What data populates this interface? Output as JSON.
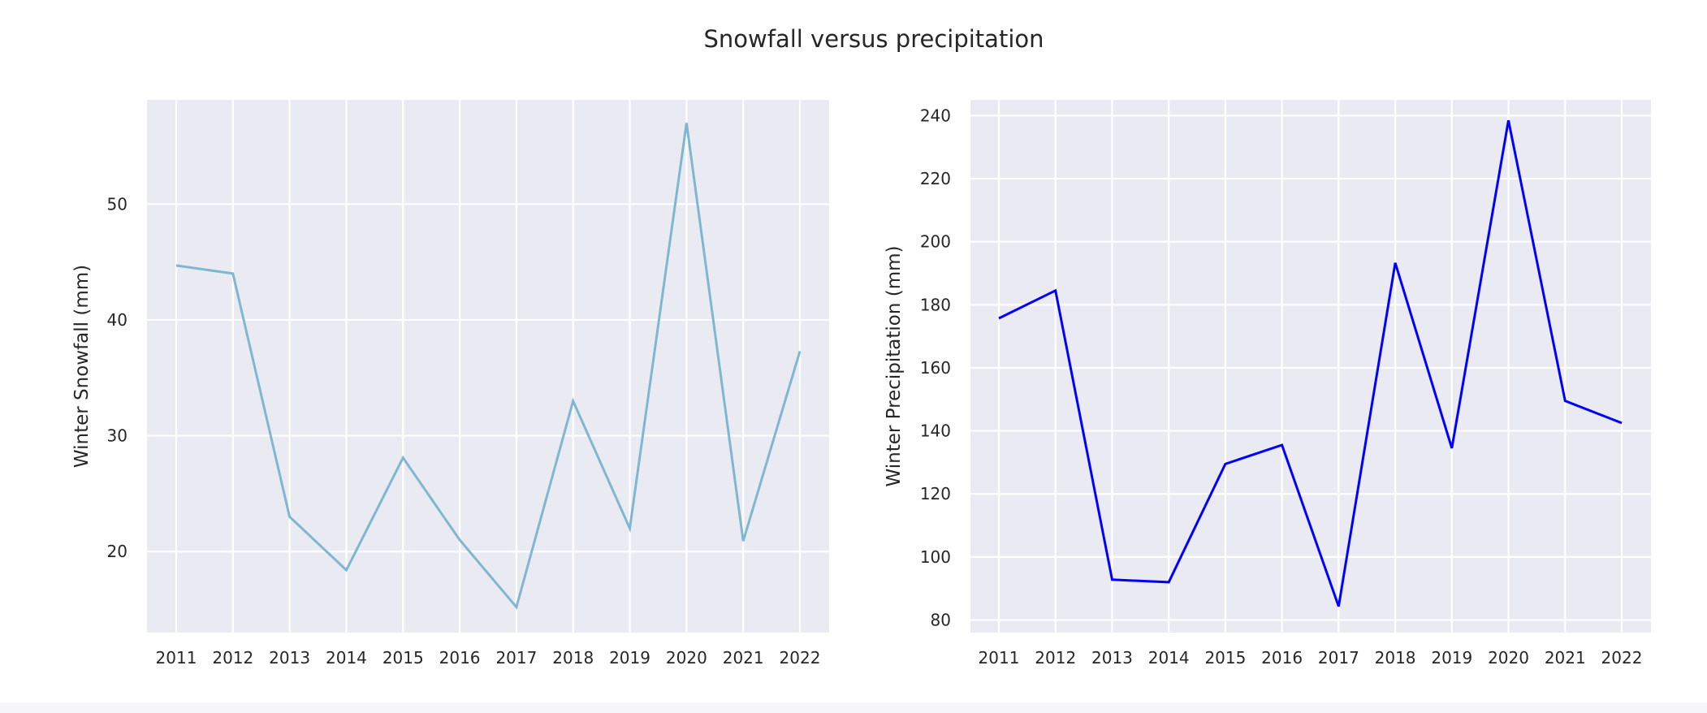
{
  "chart_data": [
    {
      "type": "line",
      "title": "Snowfall versus precipitation",
      "xlabel": "",
      "ylabel": "Winter Snowfall (mm)",
      "categories": [
        "2011",
        "2012",
        "2013",
        "2014",
        "2015",
        "2016",
        "2017",
        "2018",
        "2019",
        "2020",
        "2021",
        "2022"
      ],
      "values": [
        44.7,
        44.0,
        23.0,
        18.4,
        28.1,
        21.0,
        15.2,
        33.0,
        22.0,
        57.0,
        20.9,
        37.3
      ],
      "yticks": [
        20,
        30,
        40,
        50
      ],
      "ylim": [
        13,
        59
      ],
      "grid": true,
      "color": "#7fb7d0"
    },
    {
      "type": "line",
      "xlabel": "",
      "ylabel": "Winter Precipitation (mm)",
      "categories": [
        "2011",
        "2012",
        "2013",
        "2014",
        "2015",
        "2016",
        "2017",
        "2018",
        "2019",
        "2020",
        "2021",
        "2022"
      ],
      "values": [
        175.7,
        184.5,
        92.8,
        92.0,
        129.5,
        135.5,
        84.3,
        193.3,
        134.5,
        238.5,
        149.5,
        142.5
      ],
      "yticks": [
        80,
        100,
        120,
        140,
        160,
        180,
        200,
        220,
        240
      ],
      "ylim": [
        76,
        245
      ],
      "grid": true,
      "color": "#0000ff"
    }
  ]
}
